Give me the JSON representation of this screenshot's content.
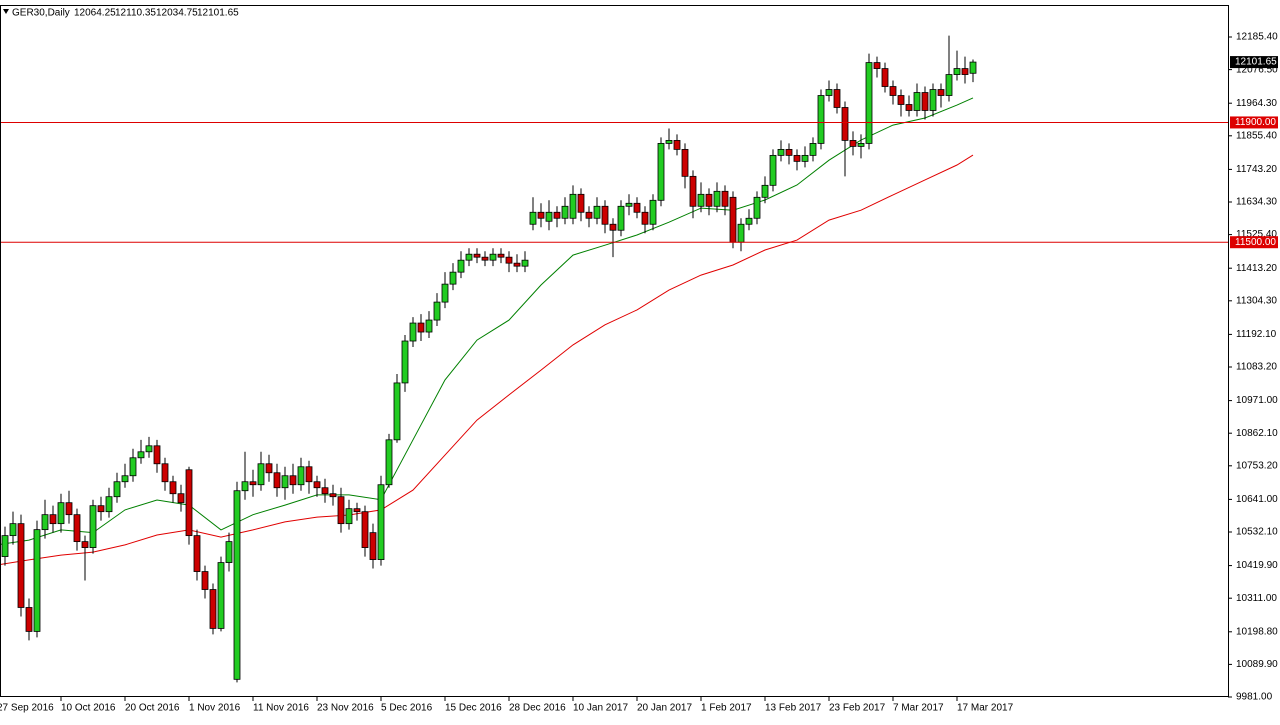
{
  "chart_data": {
    "type": "candlestick",
    "title": "GER30,Daily",
    "categories": [
      "27 Sep 2016",
      null,
      null,
      null,
      null,
      null,
      null,
      null,
      "10 Oct 2016",
      null,
      null,
      null,
      null,
      null,
      null,
      null,
      "20 Oct 2016",
      null,
      null,
      null,
      null,
      null,
      null,
      null,
      "1 Nov 2016",
      null,
      null,
      null,
      null,
      null,
      null,
      null,
      "11 Nov 2016",
      null,
      null,
      null,
      null,
      null,
      null,
      null,
      "23 Nov 2016",
      null,
      null,
      null,
      null,
      null,
      null,
      null,
      "5 Dec 2016",
      null,
      null,
      null,
      null,
      null,
      null,
      null,
      "15 Dec 2016",
      null,
      null,
      null,
      null,
      null,
      null,
      null,
      "28 Dec 2016",
      null,
      null,
      null,
      null,
      null,
      null,
      null,
      "10 Jan 2017",
      null,
      null,
      null,
      null,
      null,
      null,
      null,
      "20 Jan 2017",
      null,
      null,
      null,
      null,
      null,
      null,
      null,
      "1 Feb 2017",
      null,
      null,
      null,
      null,
      null,
      null,
      null,
      "13 Feb 2017",
      null,
      null,
      null,
      null,
      null,
      null,
      null,
      "23 Feb 2017",
      null,
      null,
      null,
      null,
      null,
      null,
      null,
      "7 Mar 2017",
      null,
      null,
      null,
      null,
      null,
      null,
      null,
      "17 Mar 2017",
      null,
      null
    ],
    "open": [
      10390,
      10450,
      10520,
      10560,
      10280,
      10200,
      10540,
      10590,
      10560,
      10630,
      10590,
      10500,
      10480,
      10620,
      10600,
      10650,
      10700,
      10720,
      10780,
      10800,
      10820,
      10760,
      10700,
      10660,
      10740,
      10520,
      10400,
      10340,
      10210,
      10430,
      10040,
      10670,
      10700,
      10690,
      10760,
      10730,
      10680,
      10720,
      10690,
      10750,
      10700,
      10680,
      10660,
      10650,
      10560,
      10610,
      10600,
      10530,
      10440,
      10690,
      10840,
      11030,
      11170,
      11230,
      11200,
      11240,
      11300,
      11360,
      11400,
      11440,
      11460,
      11450,
      11440,
      11460,
      11450,
      11430,
      11420,
      11560,
      11600,
      11570,
      11600,
      11580,
      11580,
      11660,
      11600,
      11580,
      11620,
      11560,
      11540,
      11620,
      11630,
      11600,
      11560,
      11640,
      11830,
      11840,
      11810,
      11720,
      11620,
      11660,
      11620,
      11670,
      11650,
      11500,
      11560,
      11580,
      11650,
      11690,
      11790,
      11810,
      11790,
      11770,
      11790,
      11830,
      11990,
      12010,
      11950,
      11840,
      11820,
      11830,
      12100,
      12080,
      12020,
      11990,
      11960,
      11940,
      12000,
      11940,
      12010,
      11990,
      12060,
      12080,
      12064.25
    ],
    "high": [
      10480,
      10550,
      10600,
      10590,
      10310,
      10570,
      10640,
      10620,
      10660,
      10670,
      10610,
      10520,
      10640,
      10650,
      10680,
      10730,
      10760,
      10810,
      10840,
      10850,
      10840,
      10780,
      10720,
      10690,
      10750,
      10540,
      10420,
      10360,
      10450,
      10530,
      10700,
      10800,
      10740,
      10800,
      10790,
      10760,
      10750,
      10760,
      10780,
      10770,
      10720,
      10710,
      10690,
      10680,
      10640,
      10630,
      10620,
      10560,
      10720,
      10860,
      11060,
      11190,
      11250,
      11260,
      11270,
      11330,
      11400,
      11430,
      11470,
      11480,
      11480,
      11470,
      11480,
      11480,
      11470,
      11460,
      11470,
      11650,
      11630,
      11640,
      11620,
      11650,
      11690,
      11680,
      11620,
      11650,
      11640,
      11580,
      11640,
      11660,
      11650,
      11620,
      11660,
      11850,
      11880,
      11860,
      11830,
      11740,
      11700,
      11680,
      11700,
      11690,
      11670,
      11580,
      11610,
      11670,
      11720,
      11810,
      11840,
      11830,
      11810,
      11820,
      11850,
      12010,
      12040,
      12030,
      11970,
      11870,
      11860,
      12130,
      12120,
      12100,
      12040,
      12010,
      11990,
      12030,
      12020,
      12030,
      12030,
      12190,
      12140,
      12120,
      12110.35
    ],
    "low": [
      10360,
      10420,
      10490,
      10250,
      10170,
      10180,
      10510,
      10530,
      10530,
      10560,
      10470,
      10370,
      10460,
      10570,
      10580,
      10630,
      10680,
      10700,
      10760,
      10780,
      10730,
      10670,
      10630,
      10600,
      10490,
      10370,
      10310,
      10190,
      10200,
      10400,
      10030,
      10640,
      10650,
      10670,
      10700,
      10650,
      10640,
      10660,
      10670,
      10660,
      10650,
      10630,
      10620,
      10530,
      10540,
      10570,
      10450,
      10410,
      10420,
      10680,
      10830,
      11000,
      11150,
      11170,
      11180,
      11220,
      11280,
      11340,
      11380,
      11420,
      11430,
      11420,
      11420,
      11430,
      11400,
      11400,
      11400,
      11540,
      11550,
      11540,
      11550,
      11560,
      11560,
      11570,
      11550,
      11560,
      11530,
      11450,
      11520,
      11590,
      11580,
      11530,
      11540,
      11620,
      11810,
      11790,
      11680,
      11580,
      11600,
      11590,
      11600,
      11590,
      11480,
      11470,
      11540,
      11560,
      11630,
      11670,
      11770,
      11760,
      11740,
      11750,
      11770,
      11810,
      11970,
      11930,
      11720,
      11790,
      11780,
      11810,
      12050,
      12000,
      11960,
      11920,
      11920,
      11920,
      11910,
      11920,
      11950,
      11970,
      12040,
      12030,
      12034.75
    ],
    "close": [
      10450,
      10520,
      10560,
      10280,
      10200,
      10540,
      10590,
      10560,
      10630,
      10590,
      10500,
      10480,
      10620,
      10600,
      10650,
      10700,
      10720,
      10780,
      10800,
      10820,
      10760,
      10700,
      10660,
      10630,
      10520,
      10400,
      10340,
      10210,
      10430,
      10500,
      10670,
      10700,
      10690,
      10760,
      10730,
      10680,
      10720,
      10690,
      10750,
      10700,
      10680,
      10660,
      10650,
      10560,
      10610,
      10600,
      10480,
      10440,
      10690,
      10840,
      11030,
      11170,
      11230,
      11200,
      11240,
      11300,
      11360,
      11400,
      11440,
      11460,
      11450,
      11440,
      11460,
      11450,
      11430,
      11420,
      11440,
      11600,
      11580,
      11600,
      11580,
      11620,
      11660,
      11600,
      11580,
      11620,
      11560,
      11540,
      11620,
      11630,
      11600,
      11560,
      11640,
      11830,
      11840,
      11810,
      11720,
      11620,
      11660,
      11620,
      11670,
      11620,
      11500,
      11560,
      11580,
      11650,
      11690,
      11790,
      11810,
      11790,
      11770,
      11790,
      11830,
      11990,
      12010,
      11950,
      11840,
      11820,
      11830,
      12100,
      12080,
      12020,
      11990,
      11960,
      11940,
      12000,
      11940,
      12010,
      11990,
      12060,
      12080,
      12060,
      12101.65
    ],
    "up_color": "#22cc22",
    "down_color": "#cc0000",
    "ylim": [
      9981,
      12292.3
    ],
    "yticks": [
      {
        "value": 9981,
        "label": "9981.00"
      },
      {
        "value": 10089.9,
        "label": "10089.90"
      },
      {
        "value": 10198.8,
        "label": "10198.80"
      },
      {
        "value": 10311,
        "label": "10311.00"
      },
      {
        "value": 10419.9,
        "label": "10419.90"
      },
      {
        "value": 10532.1,
        "label": "10532.10"
      },
      {
        "value": 10641,
        "label": "10641.00"
      },
      {
        "value": 10753.2,
        "label": "10753.20"
      },
      {
        "value": 10862.1,
        "label": "10862.10"
      },
      {
        "value": 10971,
        "label": "10971.00"
      },
      {
        "value": 11083.2,
        "label": "11083.20"
      },
      {
        "value": 11192.1,
        "label": "11192.10"
      },
      {
        "value": 11304.3,
        "label": "11304.30"
      },
      {
        "value": 11413.2,
        "label": "11413.20"
      },
      {
        "value": 11525.4,
        "label": "11525.40"
      },
      {
        "value": 11634.3,
        "label": "11634.30"
      },
      {
        "value": 11743.2,
        "label": "11743.20"
      },
      {
        "value": 11855.4,
        "label": "11855.40"
      },
      {
        "value": 11964.3,
        "label": "11964.30"
      },
      {
        "value": 12076.5,
        "label": "12076.50"
      },
      {
        "value": 12185.4,
        "label": "12185.40"
      }
    ],
    "hlines": [
      {
        "value": 11900,
        "label": "11900.00",
        "color": "#dd0000"
      },
      {
        "value": 11500,
        "label": "11500.00",
        "color": "#dd0000"
      }
    ],
    "ma_lines": [
      {
        "color": "#008000",
        "x": [
          0,
          4,
          8,
          12,
          16,
          20,
          24,
          28,
          32,
          36,
          40,
          44,
          48,
          52,
          56,
          60,
          64,
          68,
          72,
          76,
          80,
          84,
          88,
          92,
          96,
          100,
          104,
          108,
          112,
          116,
          120,
          122
        ],
        "values": [
          10489,
          10505,
          10539,
          10530,
          10606,
          10639,
          10622,
          10539,
          10590,
          10622,
          10656,
          10656,
          10640,
          10840,
          11040,
          11173,
          11240,
          11357,
          11457,
          11490,
          11524,
          11567,
          11614,
          11607,
          11641,
          11691,
          11774,
          11841,
          11891,
          11915,
          11958,
          11982
        ]
      },
      {
        "color": "#e00000",
        "x": [
          0,
          4,
          8,
          12,
          16,
          20,
          24,
          28,
          32,
          36,
          40,
          44,
          48,
          52,
          56,
          60,
          64,
          68,
          72,
          76,
          80,
          84,
          88,
          92,
          96,
          100,
          104,
          108,
          112,
          116,
          120,
          122
        ],
        "values": [
          10422,
          10439,
          10455,
          10465,
          10489,
          10522,
          10539,
          10515,
          10539,
          10566,
          10582,
          10589,
          10606,
          10672,
          10789,
          10906,
          10990,
          11073,
          11157,
          11224,
          11274,
          11340,
          11390,
          11424,
          11474,
          11507,
          11574,
          11607,
          11658,
          11708,
          11758,
          11791
        ]
      }
    ]
  }
}
